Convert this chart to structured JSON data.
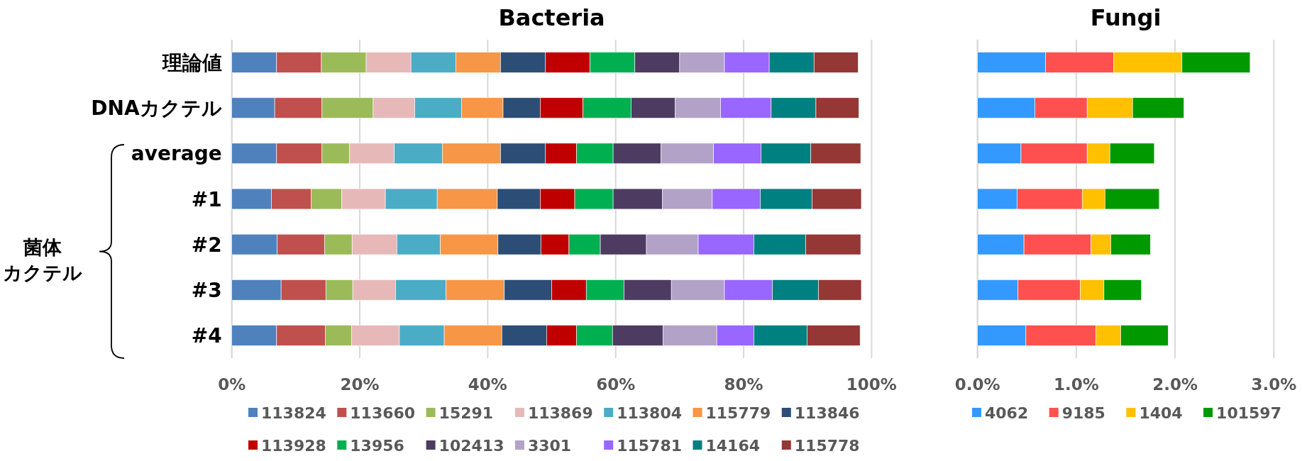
{
  "chart_data": [
    {
      "type": "bar",
      "title": "Bacteria",
      "orientation": "horizontal",
      "stacked": true,
      "grid": "x",
      "legend": "bottom",
      "categories": [
        "理論値",
        "DNAカクテル",
        "average",
        "#1",
        "#2",
        "#3",
        "#4"
      ],
      "annotations": [
        "菌体",
        "カクテル"
      ],
      "xlim": [
        0,
        100
      ],
      "xticks": [
        {
          "value": 0,
          "label": "0%"
        },
        {
          "value": 20,
          "label": "20%"
        },
        {
          "value": 40,
          "label": "40%"
        },
        {
          "value": 60,
          "label": "60%"
        },
        {
          "value": 80,
          "label": "80%"
        },
        {
          "value": 100,
          "label": "100%"
        }
      ],
      "series": [
        {
          "name": "113824",
          "color": "#4f81bd",
          "values": [
            7,
            6.7,
            7,
            6.2,
            7.1,
            7.7,
            7
          ]
        },
        {
          "name": "113660",
          "color": "#c0504d",
          "values": [
            7,
            7.4,
            7.1,
            6.2,
            7.4,
            7,
            7.6
          ]
        },
        {
          "name": "15291",
          "color": "#9bbb59",
          "values": [
            7,
            8,
            4.3,
            4.8,
            4.3,
            4.2,
            4.1
          ]
        },
        {
          "name": "113869",
          "color": "#e6b9b8",
          "values": [
            7,
            6.5,
            7,
            6.8,
            7,
            6.7,
            7.5
          ]
        },
        {
          "name": "113804",
          "color": "#4bacc6",
          "values": [
            7,
            7.3,
            7.5,
            8.1,
            6.8,
            7.9,
            7
          ]
        },
        {
          "name": "115779",
          "color": "#f79646",
          "values": [
            7,
            6.5,
            9.1,
            9.4,
            9,
            9.1,
            9
          ]
        },
        {
          "name": "113846",
          "color": "#2c4d75",
          "values": [
            7,
            5.8,
            7,
            6.7,
            6.7,
            7.4,
            7
          ]
        },
        {
          "name": "113928",
          "color": "#c00000",
          "values": [
            7,
            6.7,
            4.9,
            5.4,
            4.4,
            5.4,
            4.7
          ]
        },
        {
          "name": "13956",
          "color": "#00b050",
          "values": [
            7,
            7.5,
            5.7,
            6,
            4.9,
            5.9,
            5.6
          ]
        },
        {
          "name": "102413",
          "color": "#4e3b62",
          "values": [
            7,
            6.9,
            7.5,
            7.7,
            7.2,
            7.4,
            7.9
          ]
        },
        {
          "name": "3301",
          "color": "#b3a2c7",
          "values": [
            7,
            7.1,
            8.2,
            7.8,
            8.1,
            8.3,
            8.4
          ]
        },
        {
          "name": "115781",
          "color": "#9966ff",
          "values": [
            7,
            7.9,
            7.4,
            7.5,
            8.7,
            7.5,
            5.8
          ]
        },
        {
          "name": "14164",
          "color": "#008080",
          "values": [
            7,
            7,
            7.8,
            8.1,
            8.1,
            7.2,
            8.3
          ]
        },
        {
          "name": "115778",
          "color": "#953735",
          "values": [
            6.9,
            6.7,
            7.8,
            7.7,
            8.6,
            6.7,
            8.3
          ]
        }
      ]
    },
    {
      "type": "bar",
      "title": "Fungi",
      "orientation": "horizontal",
      "stacked": true,
      "grid": "x",
      "legend": "bottom",
      "categories": [
        null,
        null,
        null,
        null,
        null,
        null,
        null
      ],
      "xlim": [
        0,
        3
      ],
      "xticks": [
        {
          "value": 0,
          "label": "0.0%"
        },
        {
          "value": 1,
          "label": "1.0%"
        },
        {
          "value": 2,
          "label": "2.0%"
        },
        {
          "value": 3,
          "label": "3.0%"
        }
      ],
      "series": [
        {
          "name": "4062",
          "color": "#3399ff",
          "values": [
            0.69,
            0.58,
            0.44,
            0.4,
            0.47,
            0.41,
            0.49
          ]
        },
        {
          "name": "9185",
          "color": "#ff5050",
          "values": [
            0.69,
            0.53,
            0.67,
            0.66,
            0.68,
            0.63,
            0.71
          ]
        },
        {
          "name": "1404",
          "color": "#ffc000",
          "values": [
            0.69,
            0.46,
            0.23,
            0.23,
            0.2,
            0.24,
            0.25
          ]
        },
        {
          "name": "101597",
          "color": "#009900",
          "values": [
            0.69,
            0.52,
            0.45,
            0.55,
            0.4,
            0.38,
            0.48
          ]
        }
      ]
    }
  ]
}
